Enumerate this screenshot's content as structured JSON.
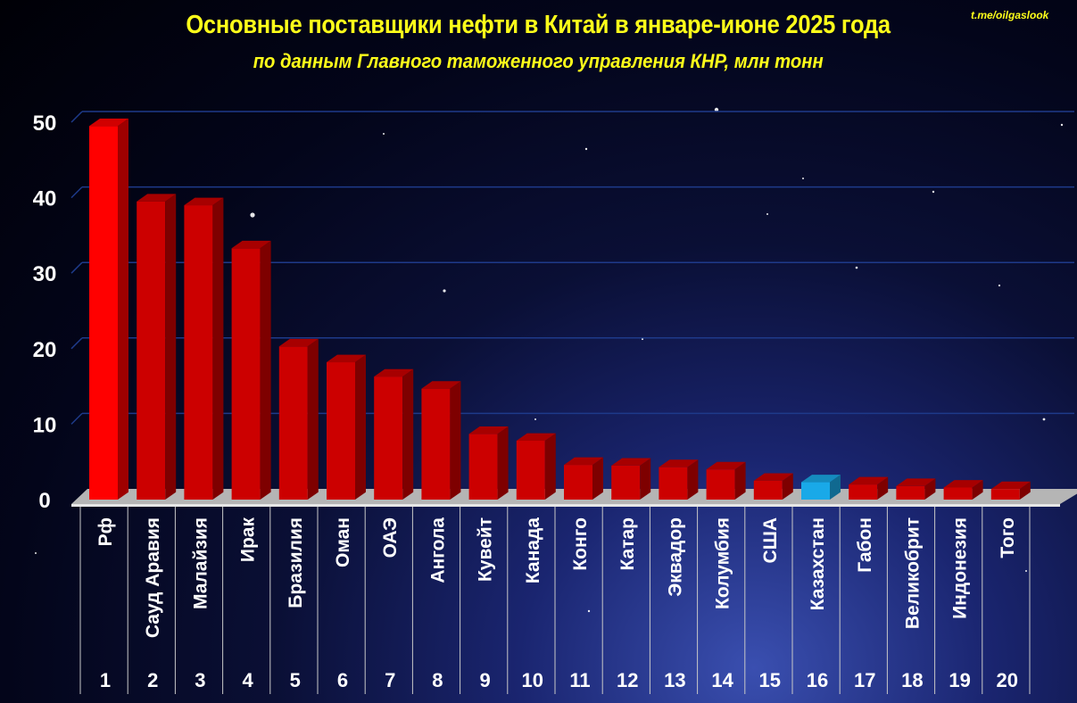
{
  "source": "t.me/oilgaslook",
  "colors": {
    "bar_default": "#cc0000",
    "bar_highlight_first": "#ff0000",
    "bar_kazakhstan": "#19a9e8",
    "title": "#ffff1a",
    "gridline": "#1e3a8a"
  },
  "chart_data": {
    "type": "bar",
    "title": "Основные поставщики нефти в Китай в январе-июне 2025 года",
    "subtitle": "по данным Главного таможенного управления КНР, млн тонн",
    "categories": [
      "Рф",
      "Сауд Аравия",
      "Малайзия",
      "Ирак",
      "Бразилия",
      "Оман",
      "ОАЭ",
      "Ангола",
      "Кувейт",
      "Канада",
      "Конго",
      "Катар",
      "Эквадор",
      "Колумбия",
      "США",
      "Казахстан",
      "Габон",
      "Великобрит",
      "Индонезия",
      "Того"
    ],
    "ranks": [
      "1",
      "2",
      "3",
      "4",
      "5",
      "6",
      "7",
      "8",
      "9",
      "10",
      "11",
      "12",
      "13",
      "14",
      "15",
      "16",
      "17",
      "18",
      "19",
      "20"
    ],
    "values": [
      49.5,
      39.5,
      39.0,
      33.3,
      20.3,
      18.2,
      16.3,
      14.7,
      8.7,
      7.8,
      4.6,
      4.5,
      4.3,
      4.0,
      2.5,
      2.3,
      2.0,
      1.8,
      1.6,
      1.4
    ],
    "highlight": {
      "0": "bar_highlight_first",
      "15": "bar_kazakhstan"
    },
    "ylim": [
      0,
      50
    ],
    "yticks": [
      "0",
      "10",
      "20",
      "30",
      "40",
      "50"
    ],
    "grid": true,
    "xlabel": "",
    "ylabel": ""
  }
}
